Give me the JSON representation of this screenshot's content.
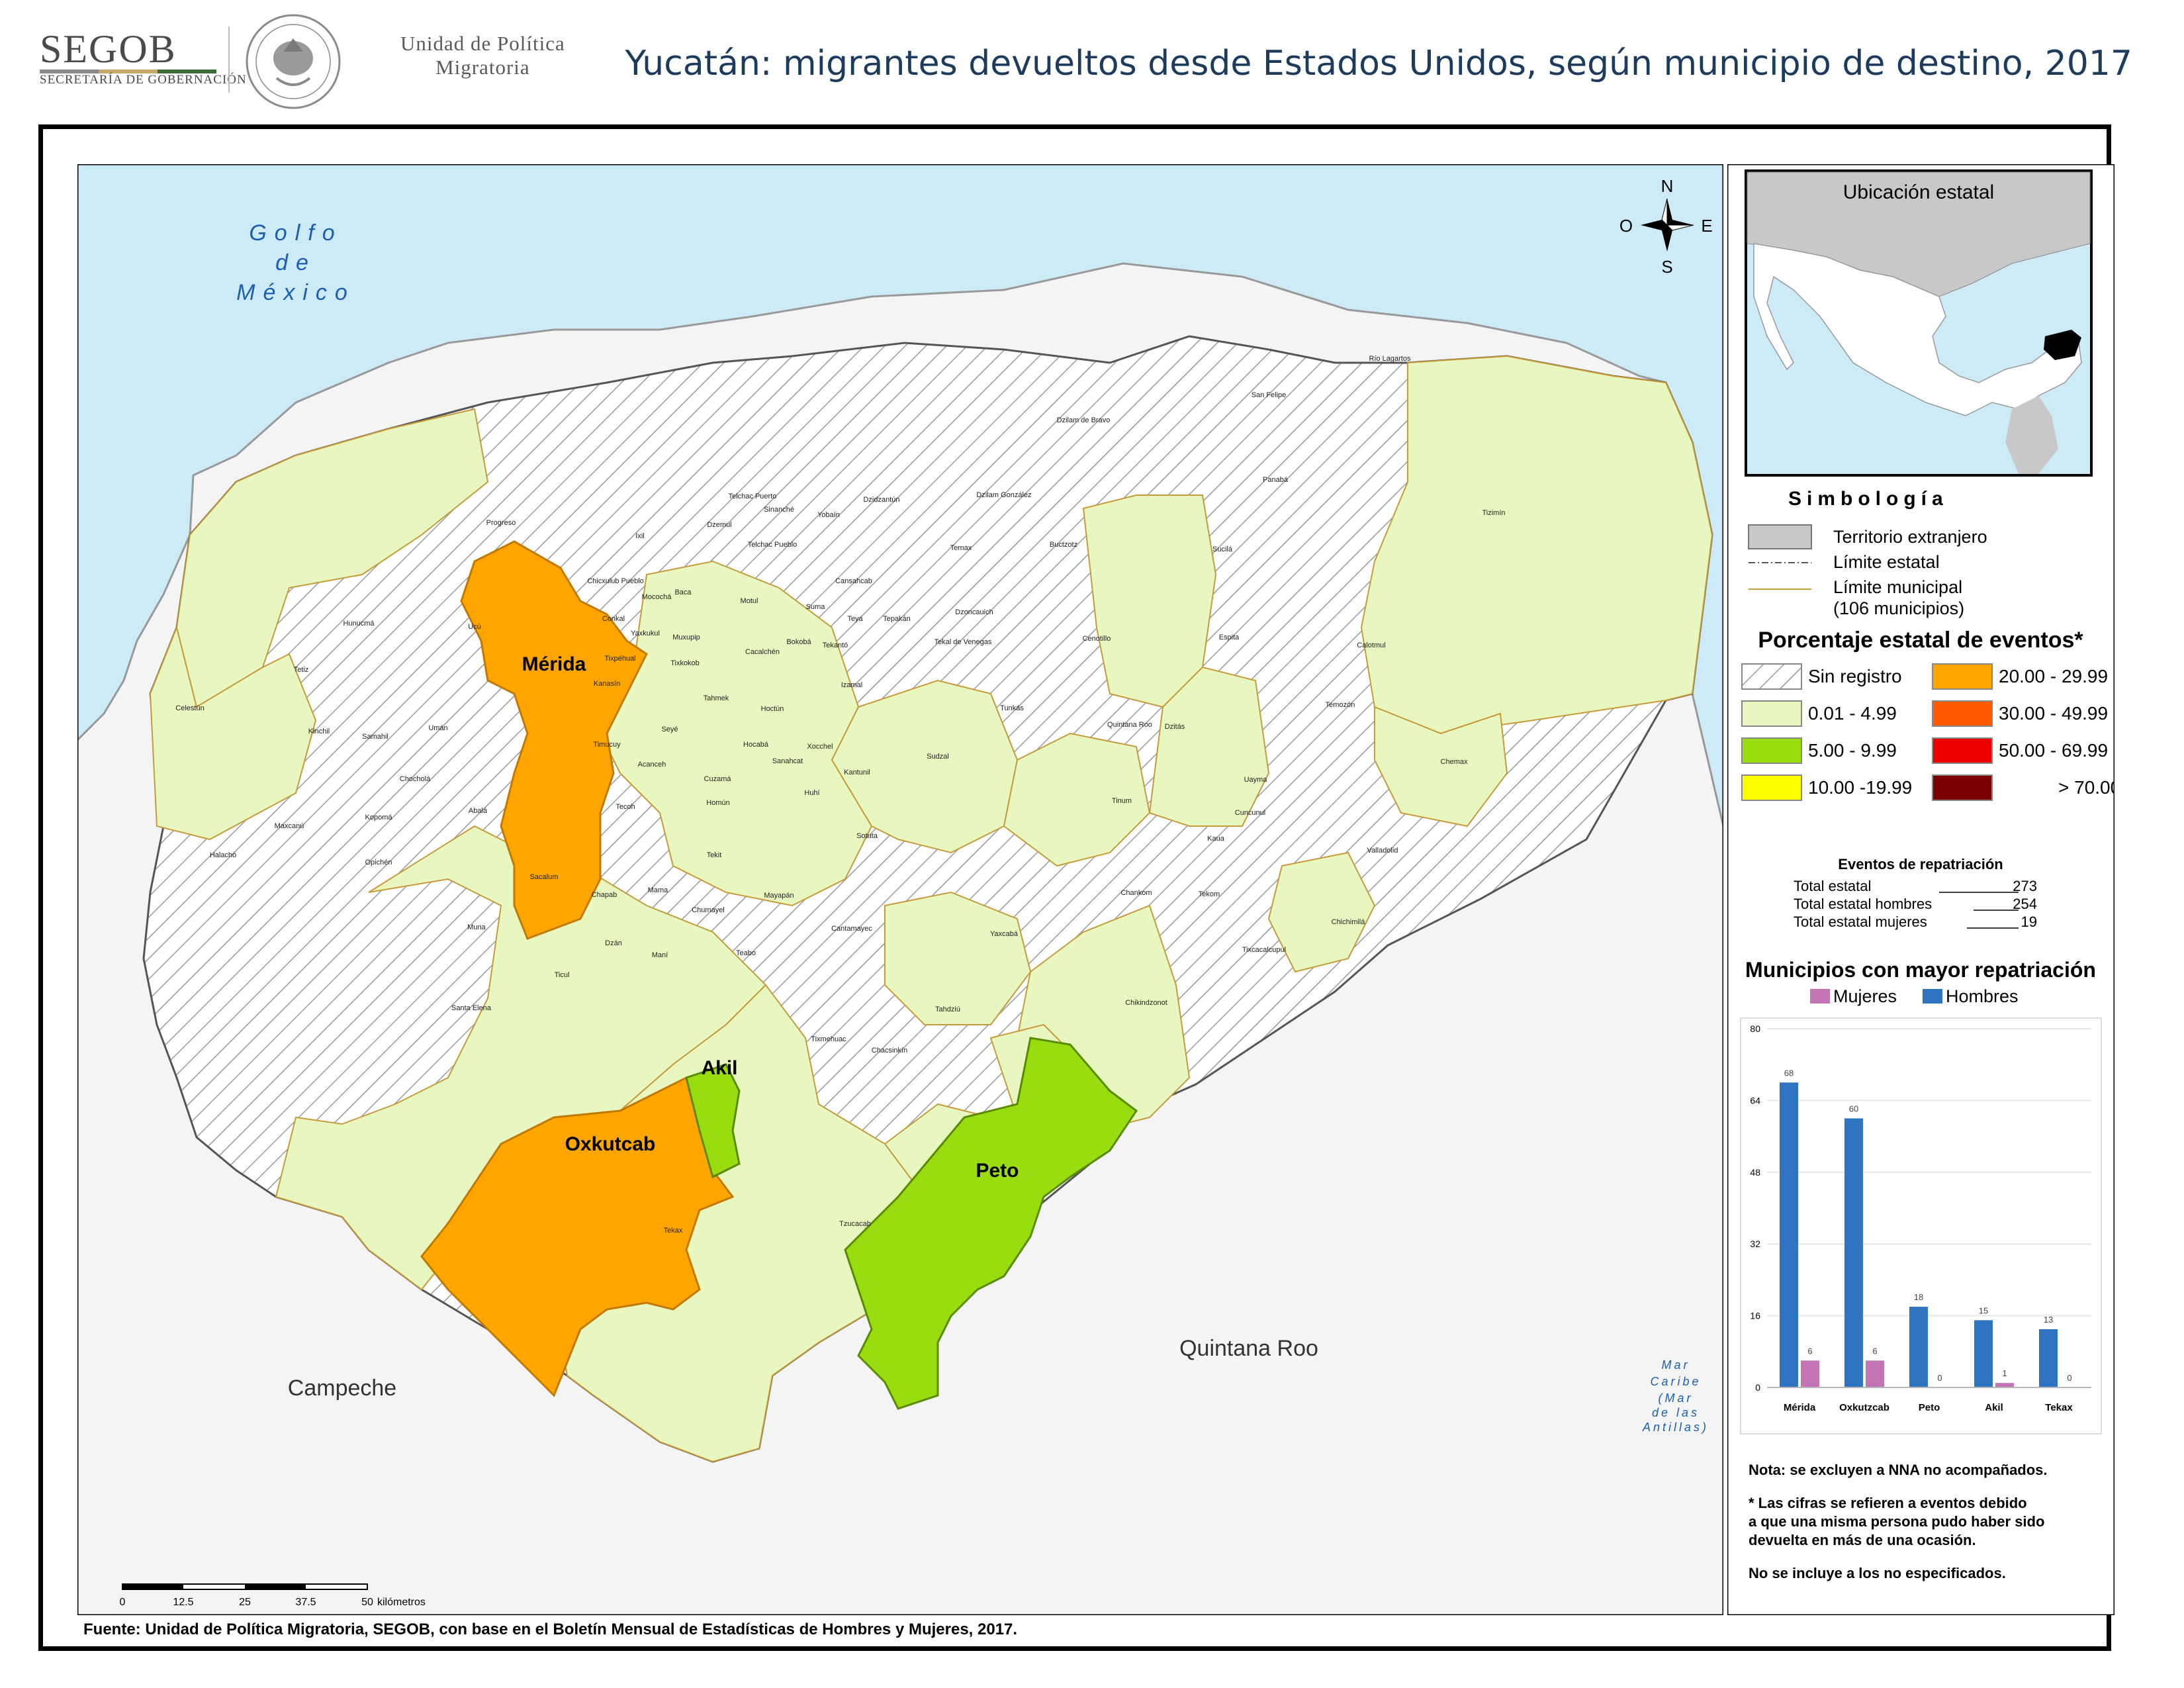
{
  "header": {
    "agency": "SEGOB",
    "agency_sub": "SECRETARÍA DE GOBERNACIÓN",
    "unit_line1": "Unidad de Política",
    "unit_line2": "Migratoria",
    "title": "Yucatán: migrantes devueltos desde Estados Unidos, según municipio de destino, 2017",
    "bar_colors": [
      "#8a8a8a",
      "#c8a96a",
      "#3a6d3a"
    ]
  },
  "map": {
    "gulf_label": [
      "Golfo",
      "de",
      "México"
    ],
    "neighbors": {
      "campeche": "Campeche",
      "quintana_roo": "Quintana Roo"
    },
    "caribe_label": [
      "Mar",
      "Caribe"
    ],
    "antillas_label": [
      "(Mar",
      "de las",
      "Antillas)"
    ],
    "compass": {
      "n": "N",
      "s": "S",
      "e": "E",
      "o": "O"
    },
    "highlight_labels": {
      "merida": "Mérida",
      "akil": "Akil",
      "oxkutcab": "Oxkutcab",
      "peto": "Peto"
    },
    "municipalities": [
      "Progreso",
      "Ixil",
      "Telchac Puerto",
      "Sinanché",
      "Yobaín",
      "Dzidzantún",
      "Dzilam de Bravo",
      "Dzilam González",
      "San Felipe",
      "Río Lagartos",
      "Panabá",
      "Tizimín",
      "Dzemul",
      "Telchac Pueblo",
      "Temax",
      "Buctzotz",
      "Sucilá",
      "Chicxulub Pueblo",
      "Mocochá",
      "Baca",
      "Motul",
      "Cansahcab",
      "Suma",
      "Teya",
      "Tepakán",
      "Dzoncauich",
      "Hunucmá",
      "Ucú",
      "Conkal",
      "Yaxkukul",
      "Muxupip",
      "Cacalchén",
      "Bokobá",
      "Tekantó",
      "Tekal de Venegas",
      "Cenotillo",
      "Espita",
      "Calotmul",
      "Tixpéhual",
      "Tixkokob",
      "Tetiz",
      "Kanasín",
      "Tahmek",
      "Hoctún",
      "Izamal",
      "Tunkás",
      "Quintana Roo",
      "Dzitás",
      "Temozón",
      "Celestún",
      "Kinchil",
      "Samahil",
      "Umán",
      "Timucuy",
      "Seyé",
      "Hocabá",
      "Xocchel",
      "Sanahcat",
      "Cuzamá",
      "Kantunil",
      "Sudzal",
      "Tinum",
      "Uayma",
      "Chemax",
      "Chocholá",
      "Acanceh",
      "Homún",
      "Huhí",
      "Cuncunul",
      "Valladolid",
      "Maxcanú",
      "Kopomá",
      "Abalá",
      "Tecoh",
      "Tekit",
      "Sotuta",
      "Kaua",
      "Halachó",
      "Opichén",
      "Sacalum",
      "Chapab",
      "Mama",
      "Chumayel",
      "Mayapán",
      "Cantamayec",
      "Yaxcabá",
      "Chankom",
      "Tekom",
      "Chichimilá",
      "Muna",
      "Dzán",
      "Maní",
      "Teabo",
      "Tixcacalcupul",
      "Ticul",
      "Santa Elena",
      "Tahdziú",
      "Chikindzonot",
      "Tixmehuac",
      "Chacsinkín",
      "Tekax",
      "Tzucacab"
    ],
    "scale": {
      "ticks": [
        "0",
        "12.5",
        "25",
        "37.5",
        "50"
      ],
      "unit": "kilómetros"
    }
  },
  "inset": {
    "title": "Ubicación estatal"
  },
  "legend": {
    "title": "Simbología",
    "items": [
      "Territorio extranjero",
      "Límite estatal",
      "Límite municipal",
      "(106 municipios)"
    ],
    "pct_title": "Porcentaje estatal de eventos*",
    "classes": [
      {
        "label": "Sin registro",
        "color": "hatch"
      },
      {
        "label": "0.01  - 4.99",
        "color": "#e8f7c0"
      },
      {
        "label": "5.00  -  9.99",
        "color": "#99dd11"
      },
      {
        "label": "10.00 -19.99",
        "color": "#ffff00"
      },
      {
        "label": "20.00 - 29.99",
        "color": "#ffa500"
      },
      {
        "label": "30.00 - 49.99",
        "color": "#ff5a00"
      },
      {
        "label": "50.00 - 69.99",
        "color": "#ee0000"
      },
      {
        "label": "> 70.00",
        "color": "#7b0000"
      }
    ]
  },
  "events": {
    "title": "Eventos de repatriación",
    "rows": [
      {
        "label": "Total estatal",
        "value": "273"
      },
      {
        "label": "Total estatal hombres",
        "value": "254"
      },
      {
        "label": "Total estatal mujeres",
        "value": "19"
      }
    ]
  },
  "chart_data": {
    "type": "bar",
    "title": "Municipios con mayor repatriación",
    "categories": [
      "Mérida",
      "Oxkutzcab",
      "Peto",
      "Akil",
      "Tekax"
    ],
    "series": [
      {
        "name": "Mujeres",
        "values": [
          6,
          6,
          0,
          1,
          0
        ],
        "color": "#c274b4"
      },
      {
        "name": "Hombres",
        "values": [
          68,
          60,
          18,
          15,
          13
        ],
        "color": "#2e74c0"
      }
    ],
    "ylim": [
      0,
      80
    ],
    "yticks": [
      "0",
      "16",
      "32",
      "48",
      "64",
      "80"
    ],
    "grid": true,
    "legend": "top"
  },
  "notes": {
    "n1": "Nota: se excluyen a NNA no acompañados.",
    "n2a": "* Las cifras se refieren a eventos debido",
    "n2b": "a que una misma persona pudo haber sido",
    "n2c": "devuelta en más de una ocasión.",
    "n3": "No se incluye a los no especificados."
  },
  "source": "Fuente: Unidad de Política Migratoria, SEGOB, con base en el Boletín Mensual de Estadísticas de Hombres y Mujeres, 2017.",
  "colors": {
    "sea": "#cdeaf7",
    "land": "#e8f7c0",
    "foreign": "#f4f4f4",
    "title": "#1d3b5c",
    "sea_label": "#1a5fb4"
  }
}
